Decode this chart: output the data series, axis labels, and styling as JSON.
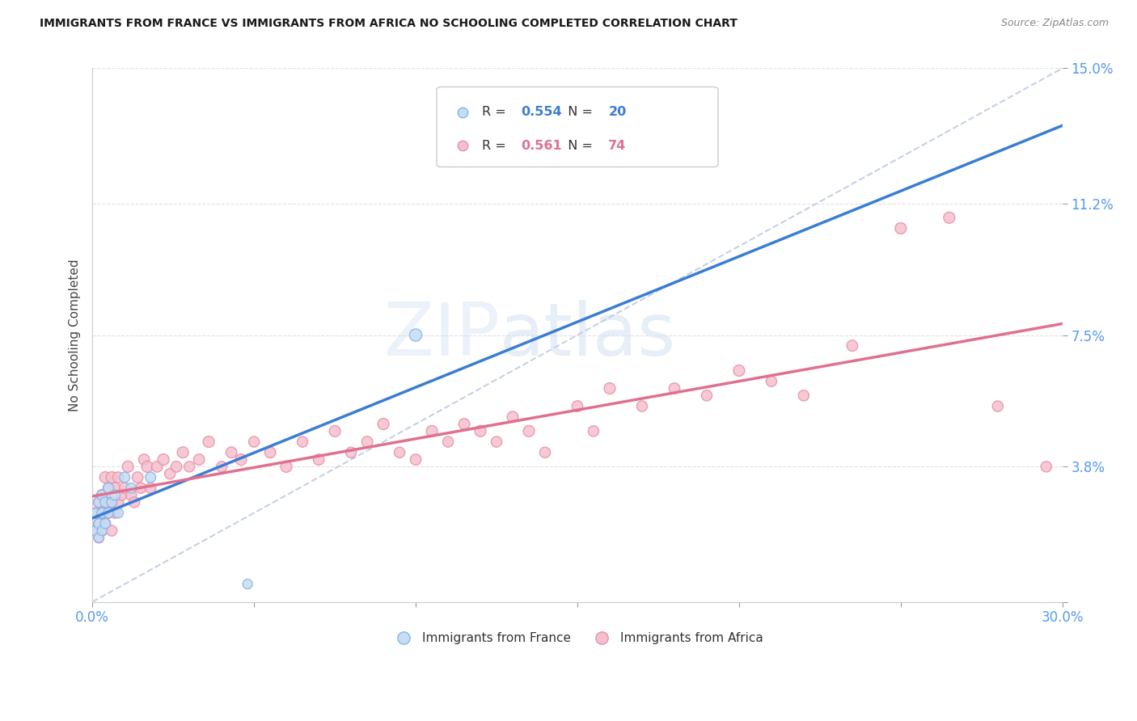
{
  "title": "IMMIGRANTS FROM FRANCE VS IMMIGRANTS FROM AFRICA NO SCHOOLING COMPLETED CORRELATION CHART",
  "source": "Source: ZipAtlas.com",
  "ylabel": "No Schooling Completed",
  "xlim": [
    0.0,
    0.3
  ],
  "ylim": [
    0.0,
    0.15
  ],
  "xtick_vals": [
    0.0,
    0.05,
    0.1,
    0.15,
    0.2,
    0.25,
    0.3
  ],
  "ytick_vals": [
    0.0,
    0.038,
    0.075,
    0.112,
    0.15
  ],
  "ytick_labels": [
    "",
    "3.8%",
    "7.5%",
    "11.2%",
    "15.0%"
  ],
  "france_color": "#c5ddf5",
  "africa_color": "#f5c0ce",
  "france_edge": "#85b5e8",
  "africa_edge": "#e890a8",
  "trend_france_color": "#3a7dd4",
  "trend_africa_color": "#e07090",
  "refline_color": "#c0cce0",
  "R_france": "0.554",
  "N_france": "20",
  "R_africa": "0.561",
  "N_africa": "74",
  "label_france": "Immigrants from France",
  "label_africa": "Immigrants from Africa",
  "france_R_color": "#3a7dd4",
  "africa_R_color": "#e07090",
  "france_x": [
    0.001,
    0.001,
    0.002,
    0.002,
    0.002,
    0.003,
    0.003,
    0.003,
    0.004,
    0.004,
    0.005,
    0.005,
    0.006,
    0.007,
    0.008,
    0.01,
    0.012,
    0.018,
    0.048,
    0.1
  ],
  "france_y": [
    0.02,
    0.025,
    0.018,
    0.022,
    0.028,
    0.02,
    0.025,
    0.03,
    0.022,
    0.028,
    0.025,
    0.032,
    0.028,
    0.03,
    0.025,
    0.035,
    0.032,
    0.035,
    0.005,
    0.075
  ],
  "france_s": [
    80,
    70,
    75,
    80,
    85,
    75,
    80,
    85,
    80,
    85,
    80,
    85,
    80,
    85,
    80,
    85,
    80,
    85,
    75,
    120
  ],
  "africa_x": [
    0.001,
    0.001,
    0.002,
    0.002,
    0.002,
    0.003,
    0.003,
    0.003,
    0.004,
    0.004,
    0.004,
    0.005,
    0.005,
    0.006,
    0.006,
    0.006,
    0.007,
    0.007,
    0.008,
    0.008,
    0.009,
    0.01,
    0.011,
    0.012,
    0.013,
    0.014,
    0.015,
    0.016,
    0.017,
    0.018,
    0.02,
    0.022,
    0.024,
    0.026,
    0.028,
    0.03,
    0.033,
    0.036,
    0.04,
    0.043,
    0.046,
    0.05,
    0.055,
    0.06,
    0.065,
    0.07,
    0.075,
    0.08,
    0.085,
    0.09,
    0.095,
    0.1,
    0.105,
    0.11,
    0.115,
    0.12,
    0.125,
    0.13,
    0.135,
    0.14,
    0.15,
    0.155,
    0.16,
    0.17,
    0.18,
    0.19,
    0.2,
    0.21,
    0.22,
    0.235,
    0.25,
    0.265,
    0.28,
    0.295
  ],
  "africa_y": [
    0.02,
    0.025,
    0.018,
    0.022,
    0.028,
    0.02,
    0.025,
    0.03,
    0.022,
    0.028,
    0.035,
    0.025,
    0.032,
    0.02,
    0.028,
    0.035,
    0.025,
    0.032,
    0.028,
    0.035,
    0.03,
    0.032,
    0.038,
    0.03,
    0.028,
    0.035,
    0.032,
    0.04,
    0.038,
    0.032,
    0.038,
    0.04,
    0.036,
    0.038,
    0.042,
    0.038,
    0.04,
    0.045,
    0.038,
    0.042,
    0.04,
    0.045,
    0.042,
    0.038,
    0.045,
    0.04,
    0.048,
    0.042,
    0.045,
    0.05,
    0.042,
    0.04,
    0.048,
    0.045,
    0.05,
    0.048,
    0.045,
    0.052,
    0.048,
    0.042,
    0.055,
    0.048,
    0.06,
    0.055,
    0.06,
    0.058,
    0.065,
    0.062,
    0.058,
    0.072,
    0.105,
    0.108,
    0.055,
    0.038
  ],
  "africa_s": [
    100,
    90,
    85,
    90,
    95,
    90,
    95,
    100,
    90,
    95,
    100,
    90,
    95,
    90,
    95,
    100,
    90,
    95,
    90,
    95,
    90,
    95,
    100,
    90,
    90,
    95,
    90,
    95,
    100,
    90,
    95,
    100,
    90,
    95,
    100,
    90,
    95,
    100,
    90,
    95,
    100,
    90,
    95,
    100,
    90,
    95,
    100,
    90,
    95,
    100,
    90,
    95,
    100,
    90,
    95,
    100,
    90,
    95,
    100,
    90,
    95,
    90,
    100,
    90,
    95,
    90,
    100,
    90,
    90,
    95,
    100,
    100,
    90,
    90
  ],
  "bg": "#ffffff",
  "grid_color": "#e0e0e0",
  "tick_color": "#5599ee",
  "watermark_zip": "ZIP",
  "watermark_atlas": "atlas"
}
